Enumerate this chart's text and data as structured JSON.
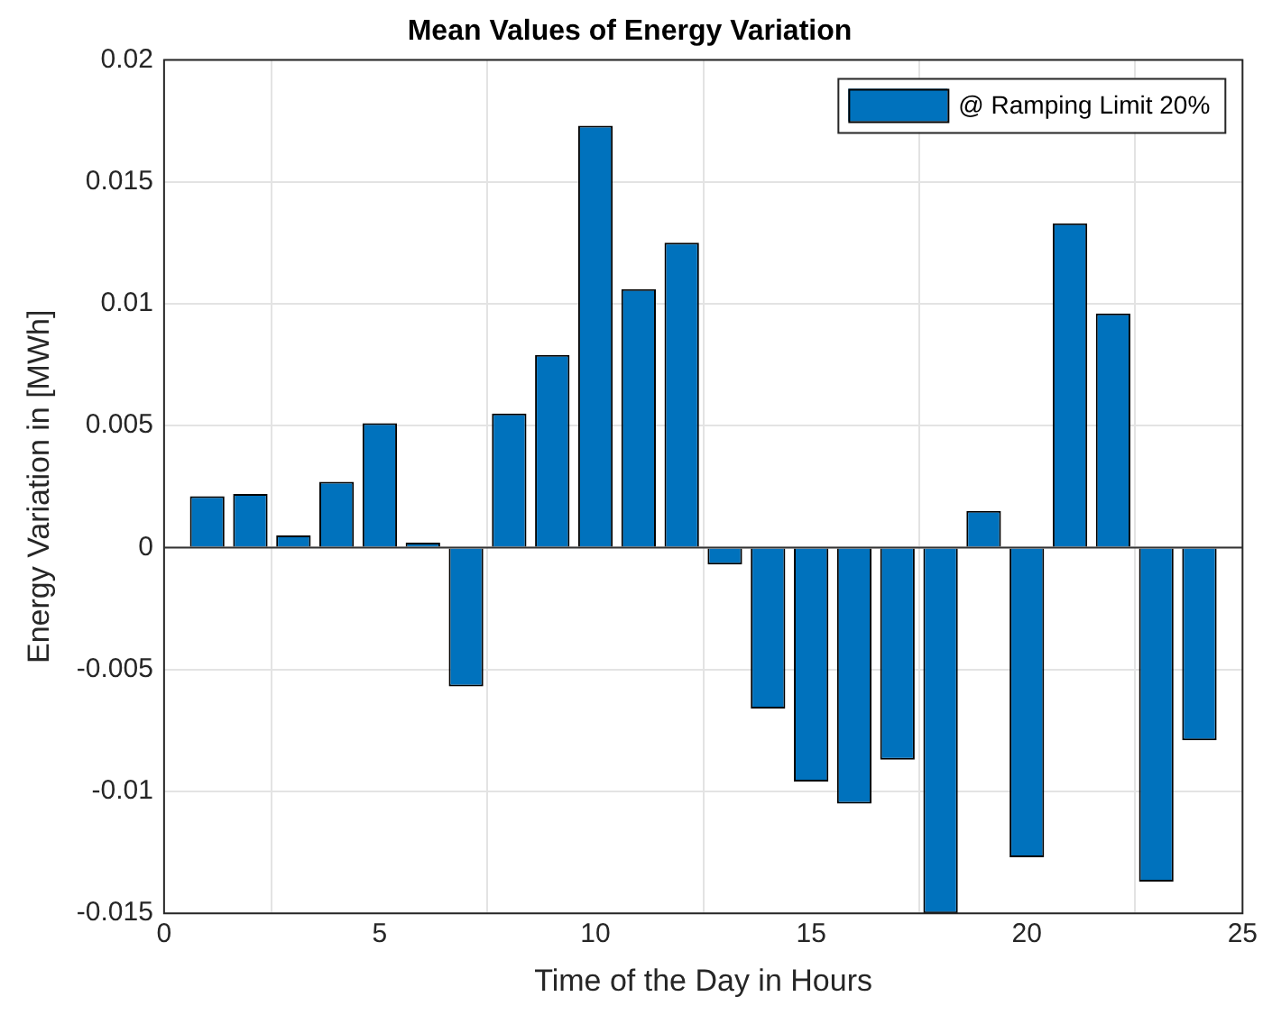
{
  "chart_data": {
    "type": "bar",
    "title": "Mean Values of Energy Variation",
    "xlabel": "Time of the Day in Hours",
    "ylabel": "Energy Variation in [MWh]",
    "x": [
      1,
      2,
      3,
      4,
      5,
      6,
      7,
      8,
      9,
      10,
      11,
      12,
      13,
      14,
      15,
      16,
      17,
      18,
      19,
      20,
      21,
      22,
      23,
      24
    ],
    "series": [
      {
        "name": "@ Ramping Limit 20%",
        "color": "#0072bd",
        "values": [
          0.0021,
          0.0022,
          0.0005,
          0.0027,
          0.0051,
          0.0002,
          -0.0057,
          0.0055,
          0.0079,
          0.0173,
          0.0106,
          0.0125,
          -0.0007,
          -0.0066,
          -0.0096,
          -0.0105,
          -0.0087,
          -0.015,
          0.0015,
          -0.0127,
          0.0133,
          0.0096,
          -0.0137,
          -0.0079
        ]
      }
    ],
    "xlim": [
      0,
      25
    ],
    "xticks": [
      0,
      5,
      10,
      15,
      20,
      25
    ],
    "ylim": [
      -0.015,
      0.02
    ],
    "yticks": [
      -0.015,
      -0.01,
      -0.005,
      0,
      0.005,
      0.01,
      0.015,
      0.02
    ],
    "grid": true,
    "legend": "top right"
  }
}
